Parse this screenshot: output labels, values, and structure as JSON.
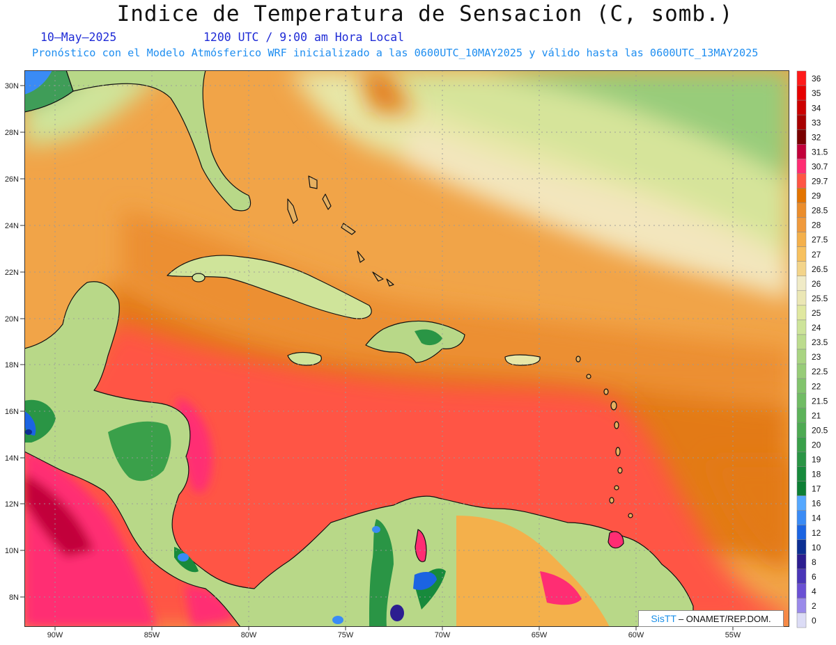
{
  "header": {
    "title": "Indice de Temperatura de Sensacion (C, somb.)",
    "date": "10–May–2025",
    "time": "1200 UTC / 9:00 am Hora Local",
    "forecast": "Pronóstico con el Modelo Atmósferico WRF inicializado a las 0600UTC_10MAY2025 y válido hasta las  0600UTC_13MAY2025"
  },
  "map": {
    "lon_ticks": [
      "90W",
      "85W",
      "80W",
      "75W",
      "70W",
      "65W",
      "60W",
      "55W"
    ],
    "lat_ticks": [
      "30N",
      "28N",
      "26N",
      "24N",
      "22N",
      "20N",
      "18N",
      "16N",
      "14N",
      "12N",
      "10N",
      "8N"
    ],
    "lon_range": [
      -92,
      -52.5
    ],
    "lat_range": [
      6.9,
      30.5
    ],
    "gridlines": true
  },
  "colorbar": {
    "labels": [
      "36",
      "35",
      "34",
      "33",
      "32",
      "31.5",
      "30.7",
      "29.7",
      "29",
      "28.5",
      "28",
      "27.5",
      "27",
      "26.5",
      "26",
      "25.5",
      "25",
      "24",
      "23.5",
      "23",
      "22.5",
      "22",
      "21.5",
      "21",
      "20.5",
      "20",
      "19",
      "18",
      "17",
      "16",
      "14",
      "12",
      "10",
      "8",
      "6",
      "4",
      "2",
      "0"
    ],
    "colors": [
      "#ff1a1a",
      "#e60000",
      "#cc0000",
      "#a80000",
      "#7a0000",
      "#c2003a",
      "#ff2d73",
      "#ff5544",
      "#e37400",
      "#eb8d2c",
      "#f09a3d",
      "#f4b04b",
      "#f7c15f",
      "#f3d48a",
      "#f0ebc7",
      "#ebe7b5",
      "#e0e8a0",
      "#cde49a",
      "#bcdc8e",
      "#a9d482",
      "#97cc78",
      "#82c46d",
      "#70bc64",
      "#5db35a",
      "#4daa52",
      "#3aa04a",
      "#2a9545",
      "#178a3c",
      "#0d7f35",
      "#55a8ff",
      "#3a8bf5",
      "#1b64e2",
      "#0c2f93",
      "#2c1e90",
      "#4a36b8",
      "#6a50d4",
      "#9a8aea",
      "#dcdcf6"
    ]
  },
  "credit": {
    "brand": "SisTT",
    "text": "– ONAMET/REP.DOM."
  }
}
